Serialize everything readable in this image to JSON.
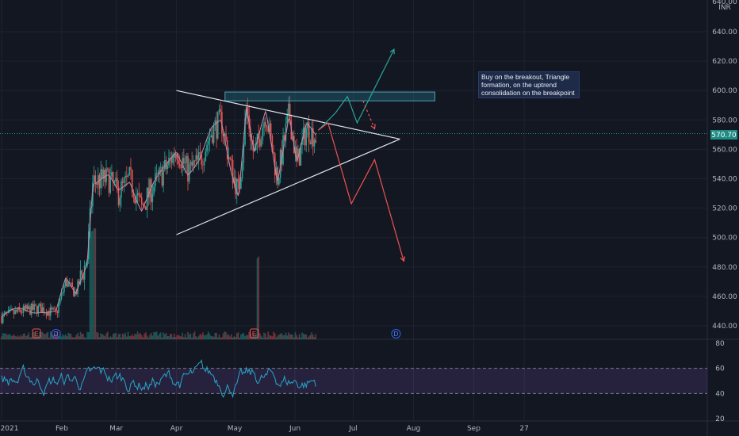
{
  "chart_data": [
    {
      "type": "candlestick",
      "currency": "INR",
      "ylim": [
        430,
        650
      ],
      "y_ticks": [
        440,
        460,
        480,
        500,
        520,
        540,
        560,
        580,
        600,
        620,
        640
      ],
      "y_top_label": "640.00",
      "x_ticks": [
        "2021",
        "Feb",
        "Mar",
        "Apr",
        "May",
        "Jun",
        "Jul",
        "Aug",
        "Sep",
        "27"
      ],
      "current_price": 570.7,
      "current_price_label": "570.70",
      "annotation": "Buy on the breakout, Triangle formation, on the uptrend consolidation on the breakpoint",
      "markers": [
        {
          "letter": "E",
          "date": "2021-01-19"
        },
        {
          "letter": "D",
          "date": "2021-01-29"
        },
        {
          "letter": "E",
          "date": "2021-05-11"
        },
        {
          "letter": "D",
          "date": "2021-07-23"
        }
      ],
      "drawings": {
        "resistance_zone": {
          "from": "2021-04-26",
          "to": "2021-08-12",
          "low": 593,
          "high": 599
        },
        "triangle_upper": {
          "from": "2021-04-01",
          "from_price": 600,
          "to": "2021-07-25",
          "to_price": 567
        },
        "triangle_lower": {
          "from": "2021-04-01",
          "from_price": 502,
          "to": "2021-07-25",
          "to_price": 567
        },
        "bullish_path": [
          [
            "2021-06-13",
            573
          ],
          [
            "2021-06-22",
            585
          ],
          [
            "2021-06-28",
            596
          ],
          [
            "2021-07-03",
            578
          ],
          [
            "2021-07-11",
            599
          ],
          [
            "2021-07-22",
            628
          ]
        ],
        "bearish_path": [
          [
            "2021-06-13",
            573
          ],
          [
            "2021-06-18",
            578
          ],
          [
            "2021-06-30",
            523
          ],
          [
            "2021-07-12",
            553
          ],
          [
            "2021-07-27",
            484
          ]
        ],
        "dashed_pullback": [
          [
            "2021-07-06",
            593
          ],
          [
            "2021-07-12",
            574
          ]
        ]
      }
    },
    {
      "type": "line",
      "indicator": "RSI",
      "ylim": [
        20,
        80
      ],
      "y_ticks": [
        20,
        40,
        60,
        80
      ],
      "band": [
        40,
        60
      ]
    }
  ]
}
